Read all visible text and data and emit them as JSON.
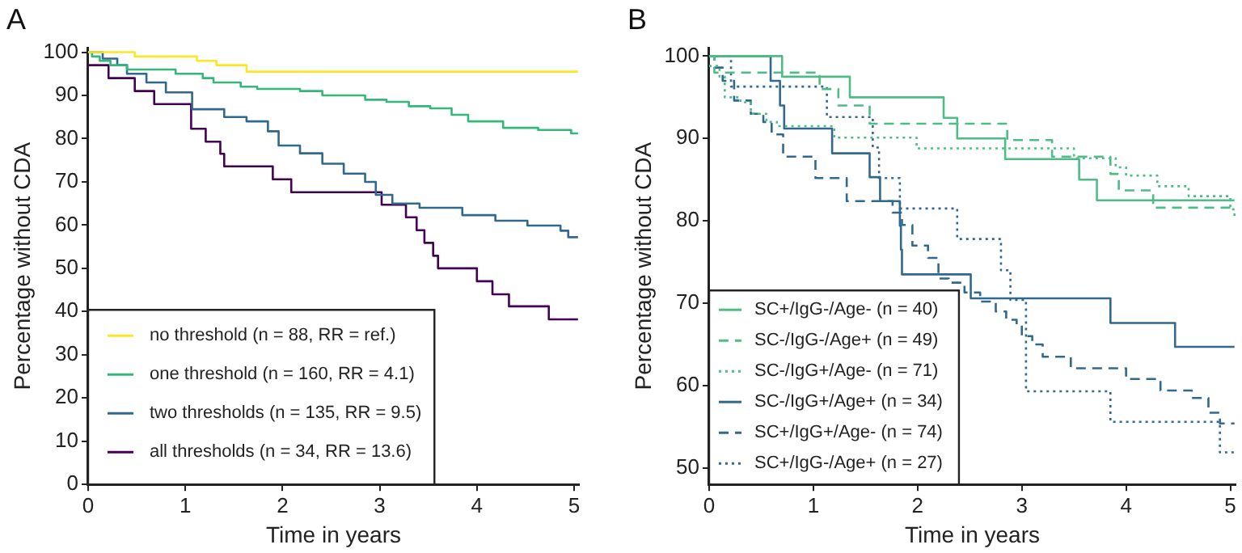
{
  "chart_data": [
    {
      "type": "step",
      "title": "A",
      "xlabel": "Time in years",
      "ylabel": "Percentage without CDA",
      "xlim": [
        0,
        5.05
      ],
      "ylim": [
        0,
        101
      ],
      "xticks": [
        0,
        1,
        2,
        3,
        4,
        5
      ],
      "yticks": [
        0,
        10,
        20,
        30,
        40,
        50,
        60,
        70,
        80,
        90,
        100
      ],
      "grid": false,
      "legend": "bottom left",
      "marker": "none",
      "series": [
        {
          "name": "no threshold (n = 88, RR = ref.)",
          "color": "#fde725",
          "line_style": "solid",
          "x": [
            0,
            0.48,
            1.12,
            1.32,
            1.63,
            5.04
          ],
          "values": [
            100,
            99,
            98,
            97,
            95.5,
            95.5
          ]
        },
        {
          "name": "one threshold (n = 160, RR = 4.1)",
          "color": "#35b779",
          "line_style": "solid",
          "x": [
            0,
            0.04,
            0.12,
            0.23,
            0.4,
            0.9,
            1.18,
            1.29,
            1.57,
            1.74,
            2.18,
            2.41,
            2.85,
            3.07,
            3.3,
            3.52,
            3.74,
            3.91,
            4.27,
            4.63,
            4.97,
            5.04
          ],
          "values": [
            100,
            99,
            98,
            97,
            96,
            95,
            94,
            93,
            92,
            91.5,
            91,
            90,
            89,
            88.5,
            87.5,
            87,
            85.5,
            84,
            82.5,
            82,
            81.2,
            81.2
          ]
        },
        {
          "name": "two thresholds (n = 135, RR = 9.5)",
          "color": "#31688e",
          "line_style": "solid",
          "x": [
            0,
            0.15,
            0.3,
            0.4,
            0.6,
            0.8,
            1.07,
            1.4,
            1.63,
            1.85,
            1.96,
            2.18,
            2.41,
            2.63,
            2.85,
            2.96,
            3.13,
            3.41,
            3.85,
            4.19,
            4.52,
            4.86,
            4.94,
            5.04
          ],
          "values": [
            100,
            98.5,
            97,
            95,
            93,
            90.7,
            86.8,
            85,
            84,
            81.7,
            78.4,
            76.6,
            74.2,
            71.9,
            70,
            67,
            65,
            64,
            62.3,
            61,
            59.9,
            58.7,
            57.2,
            57.2
          ]
        },
        {
          "name": "all thresholds (n = 34, RR = 13.6)",
          "color": "#440154",
          "line_style": "solid",
          "x": [
            0,
            0.21,
            0.48,
            0.68,
            1.06,
            1.21,
            1.36,
            1.4,
            1.9,
            2.09,
            3.02,
            3.27,
            3.38,
            3.46,
            3.55,
            3.6,
            4.0,
            4.16,
            4.33,
            4.74,
            5.04
          ],
          "values": [
            97,
            94,
            91,
            88,
            82.3,
            79.3,
            76.5,
            73.6,
            70.6,
            67.6,
            64.7,
            61.8,
            58.8,
            55.9,
            52.9,
            50,
            47,
            44,
            41.2,
            38.2,
            38.2
          ]
        }
      ]
    },
    {
      "type": "step",
      "title": "B",
      "xlabel": "Time in years",
      "ylabel": "Percentage without CDA",
      "xlim": [
        0,
        5.05
      ],
      "ylim": [
        48,
        101
      ],
      "xticks": [
        0,
        1,
        2,
        3,
        4,
        5
      ],
      "yticks": [
        50,
        60,
        70,
        80,
        90,
        100
      ],
      "grid": false,
      "legend": "bottom left",
      "marker": "none",
      "series": [
        {
          "name": "SC+/IgG-/Age- (n = 40)",
          "color": "#4dbd85",
          "line_style": "solid",
          "x": [
            0,
            0.7,
            1.35,
            2.25,
            2.38,
            2.84,
            3.55,
            3.72,
            5.04
          ],
          "values": [
            100,
            97.5,
            95,
            92.5,
            90,
            87.5,
            85,
            82.5,
            82.5
          ]
        },
        {
          "name": "SC-/IgG-/Age+ (n = 49)",
          "color": "#4dbd85",
          "line_style": "dashed",
          "x": [
            0,
            0.05,
            1.06,
            1.24,
            1.54,
            2.86,
            3.29,
            3.85,
            3.93,
            4.26,
            5.04
          ],
          "values": [
            100,
            98,
            96,
            94,
            91.8,
            89.8,
            87.8,
            85.7,
            83.7,
            81.6,
            81.6
          ]
        },
        {
          "name": "SC-/IgG+/Age- (n = 71)",
          "color": "#4dbd85",
          "line_style": "dotted",
          "x": [
            0,
            0.1,
            0.15,
            0.3,
            0.4,
            0.55,
            0.65,
            1.2,
            1.99,
            3.5,
            3.9,
            4.0,
            4.3,
            4.6,
            5.0,
            5.04
          ],
          "values": [
            98.8,
            97.5,
            95,
            94.4,
            93,
            92,
            91.5,
            90.1,
            88.8,
            87.6,
            86.5,
            85.5,
            84.2,
            83,
            81.4,
            80.2
          ]
        },
        {
          "name": "SC-/IgG+/Age+ (n = 34)",
          "color": "#31688e",
          "line_style": "solid",
          "x": [
            0,
            0.59,
            0.68,
            0.72,
            1.18,
            1.54,
            1.64,
            1.83,
            1.84,
            1.85,
            2.51,
            3.85,
            4.47,
            5.04
          ],
          "values": [
            100,
            97,
            94,
            91.2,
            88.2,
            85.3,
            82.4,
            79.4,
            76.5,
            73.5,
            70.6,
            67.6,
            64.7,
            64.7
          ]
        },
        {
          "name": "SC+/IgG+/Age- (n = 74)",
          "color": "#31688e",
          "line_style": "dashed",
          "x": [
            0,
            0.05,
            0.13,
            0.24,
            0.4,
            0.52,
            0.6,
            0.71,
            1.02,
            1.32,
            1.76,
            1.85,
            1.95,
            2.1,
            2.2,
            2.3,
            2.45,
            2.6,
            2.75,
            2.85,
            2.95,
            3.0,
            3.1,
            3.2,
            3.47,
            4.0,
            4.33,
            4.63,
            4.79,
            4.9,
            5.04
          ],
          "values": [
            100,
            98.6,
            97,
            94.6,
            93,
            92,
            90.5,
            87.8,
            85.2,
            82.4,
            81,
            79.5,
            77,
            75.5,
            73,
            72.5,
            71.3,
            70.2,
            69,
            68,
            67.3,
            66,
            65,
            63.5,
            62.1,
            60.8,
            59.4,
            58.5,
            56.7,
            55.4,
            55.4
          ]
        },
        {
          "name": "SC+/IgG-/Age+ (n = 27)",
          "color": "#31688e",
          "line_style": "dotted",
          "x": [
            0,
            0.21,
            1.13,
            1.57,
            1.63,
            1.83,
            2.38,
            2.8,
            2.89,
            3.04,
            3.85,
            4.9,
            5.04
          ],
          "values": [
            100,
            96.3,
            92.6,
            88.9,
            85.2,
            81.5,
            77.8,
            74,
            70.4,
            59.3,
            55.6,
            51.9,
            51.9
          ]
        }
      ]
    }
  ]
}
